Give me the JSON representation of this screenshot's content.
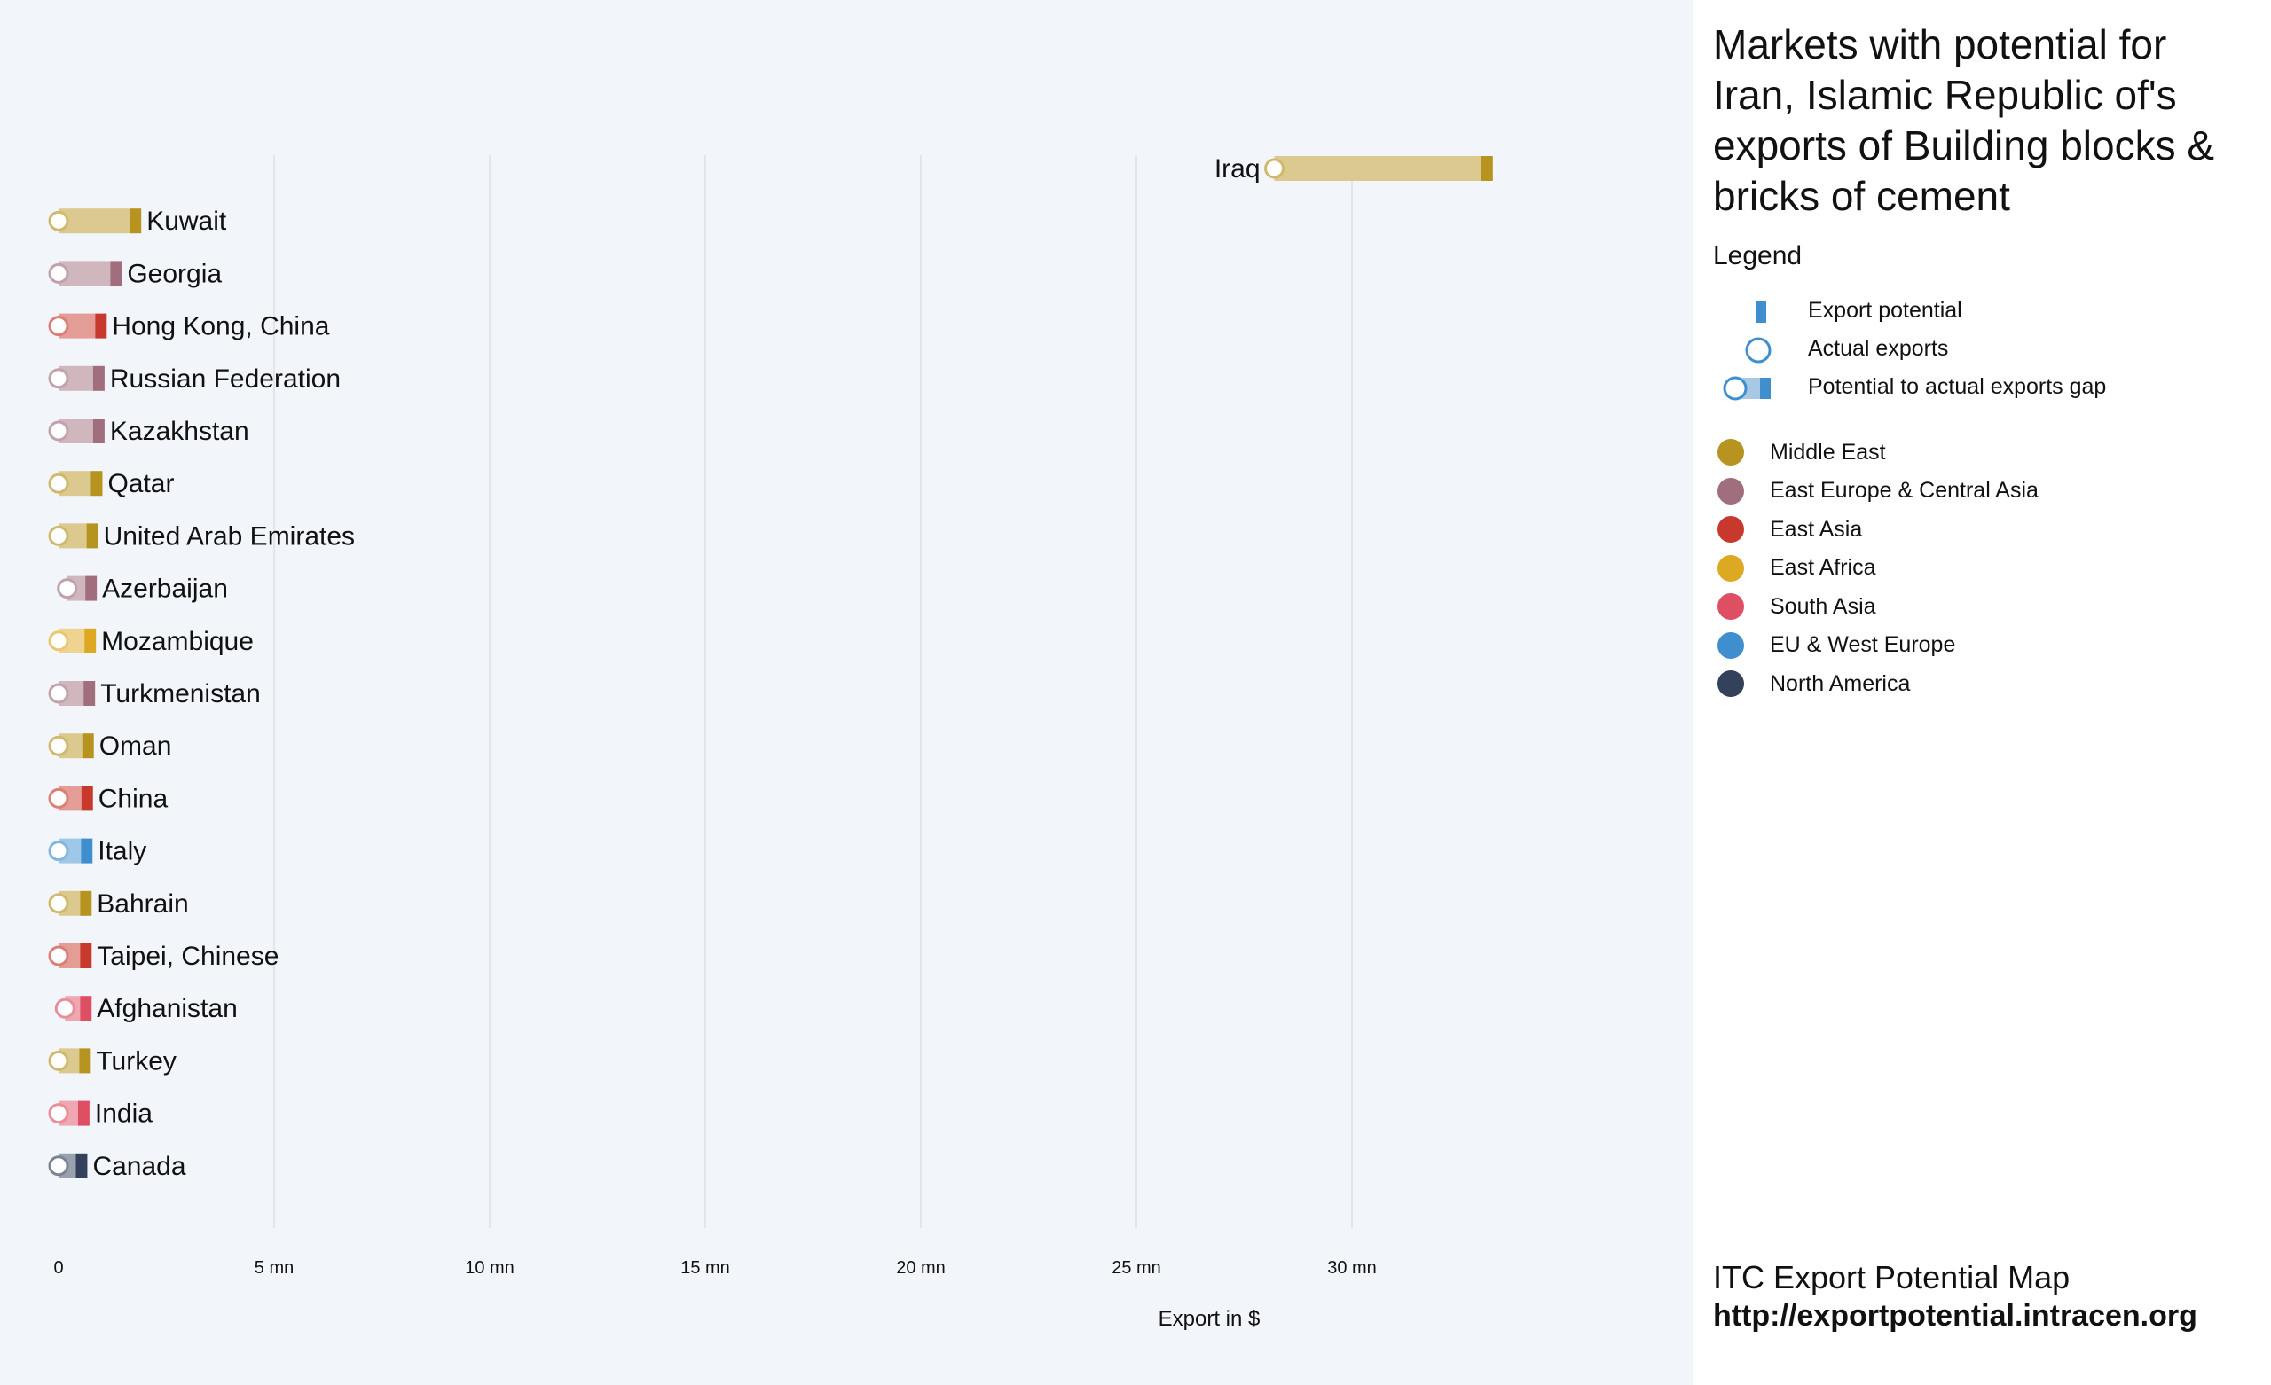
{
  "title": "Markets with potential for Iran, Islamic Republic of's exports of Building blocks & bricks of cement",
  "legend": {
    "heading": "Legend",
    "items": [
      {
        "label": "Export potential",
        "icon": "potential-bar-icon"
      },
      {
        "label": "Actual exports",
        "icon": "actual-circle-icon"
      },
      {
        "label": "Potential to actual exports gap",
        "icon": "gap-icon"
      }
    ],
    "regions": [
      {
        "label": "Middle East",
        "color": "#b7931f"
      },
      {
        "label": "East Europe & Central Asia",
        "color": "#a06e7d"
      },
      {
        "label": "East Asia",
        "color": "#c9382c"
      },
      {
        "label": "East Africa",
        "color": "#dea922"
      },
      {
        "label": "South Asia",
        "color": "#df4f63"
      },
      {
        "label": "EU & West Europe",
        "color": "#3f8fcf"
      },
      {
        "label": "North America",
        "color": "#33425a"
      }
    ]
  },
  "source": {
    "text": "ITC Export Potential Map",
    "url": "http://exportpotential.intracen.org"
  },
  "chart_data": {
    "type": "dumbbell",
    "xlabel": "Export in $",
    "xlim": [
      0,
      35
    ],
    "unit": "mn",
    "xticks": [
      {
        "value": 0,
        "label": "0"
      },
      {
        "value": 5,
        "label": "5 mn"
      },
      {
        "value": 10,
        "label": "10 mn"
      },
      {
        "value": 15,
        "label": "15 mn"
      },
      {
        "value": 20,
        "label": "20 mn"
      },
      {
        "value": 25,
        "label": "25 mn"
      },
      {
        "value": 30,
        "label": "30 mn"
      }
    ],
    "grid": true,
    "markets": [
      {
        "name": "Iraq",
        "region": "Middle East",
        "actual": 28.2,
        "potential": 33.0
      },
      {
        "name": "Kuwait",
        "region": "Middle East",
        "actual": 0.0,
        "potential": 1.65
      },
      {
        "name": "Georgia",
        "region": "East Europe & Central Asia",
        "actual": 0.0,
        "potential": 1.2
      },
      {
        "name": "Hong Kong, China",
        "region": "East Asia",
        "actual": 0.0,
        "potential": 0.85
      },
      {
        "name": "Russian Federation",
        "region": "East Europe & Central Asia",
        "actual": 0.0,
        "potential": 0.8
      },
      {
        "name": "Kazakhstan",
        "region": "East Europe & Central Asia",
        "actual": 0.0,
        "potential": 0.8
      },
      {
        "name": "Qatar",
        "region": "Middle East",
        "actual": 0.0,
        "potential": 0.75
      },
      {
        "name": "United Arab Emirates",
        "region": "Middle East",
        "actual": 0.0,
        "potential": 0.65
      },
      {
        "name": "Azerbaijan",
        "region": "East Europe & Central Asia",
        "actual": 0.2,
        "potential": 0.62
      },
      {
        "name": "Mozambique",
        "region": "East Africa",
        "actual": 0.0,
        "potential": 0.6
      },
      {
        "name": "Turkmenistan",
        "region": "East Europe & Central Asia",
        "actual": 0.0,
        "potential": 0.58
      },
      {
        "name": "Oman",
        "region": "Middle East",
        "actual": 0.0,
        "potential": 0.55
      },
      {
        "name": "China",
        "region": "East Asia",
        "actual": 0.0,
        "potential": 0.53
      },
      {
        "name": "Italy",
        "region": "EU & West Europe",
        "actual": 0.0,
        "potential": 0.52
      },
      {
        "name": "Bahrain",
        "region": "Middle East",
        "actual": 0.0,
        "potential": 0.5
      },
      {
        "name": "Taipei, Chinese",
        "region": "East Asia",
        "actual": 0.0,
        "potential": 0.5
      },
      {
        "name": "Afghanistan",
        "region": "South Asia",
        "actual": 0.15,
        "potential": 0.5
      },
      {
        "name": "Turkey",
        "region": "Middle East",
        "actual": 0.0,
        "potential": 0.48
      },
      {
        "name": "India",
        "region": "South Asia",
        "actual": 0.0,
        "potential": 0.45
      },
      {
        "name": "Canada",
        "region": "North America",
        "actual": 0.0,
        "potential": 0.4
      }
    ]
  }
}
